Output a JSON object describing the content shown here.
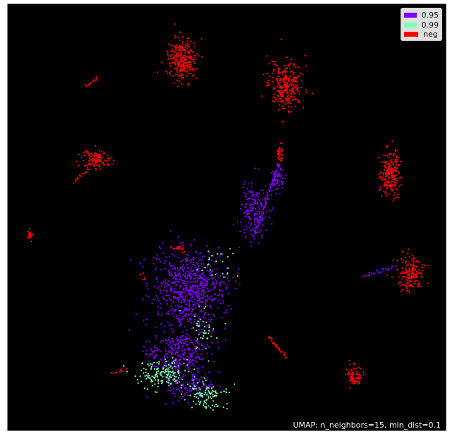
{
  "chart_data": {
    "type": "scatter",
    "title": "",
    "xlabel": "",
    "ylabel": "",
    "axes_visible": false,
    "background": "#000000",
    "annotation": "UMAP: n_neighbors=15, min_dist=0.1",
    "legend": {
      "placement": "top-right",
      "entries": [
        {
          "label": "0.95",
          "color": "#8000ff"
        },
        {
          "label": "0.99",
          "color": "#80ffb4"
        },
        {
          "label": "neg",
          "color": "#ff0000"
        }
      ]
    },
    "series": [
      {
        "name": "neg",
        "color": "#ff0000",
        "clusters": [
          {
            "center": [
              258,
              85
            ],
            "spread": [
              20,
              30
            ],
            "points": 300
          },
          {
            "center": [
              405,
              120
            ],
            "spread": [
              24,
              32
            ],
            "points": 300
          },
          {
            "center": [
              137,
              227
            ],
            "spread": [
              20,
              14
            ],
            "points": 130
          },
          {
            "center": [
              552,
              245
            ],
            "spread": [
              14,
              34
            ],
            "points": 220
          },
          {
            "center": [
              582,
              388
            ],
            "spread": [
              18,
              22
            ],
            "points": 180
          },
          {
            "center": [
              501,
              533
            ],
            "spread": [
              10,
              15
            ],
            "points": 80
          },
          {
            "center": [
              42,
              333
            ],
            "spread": [
              4,
              7
            ],
            "points": 22
          },
          {
            "center": [
              396,
              218
            ],
            "spread": [
              5,
              12
            ],
            "points": 40
          },
          {
            "center": [
              254,
              351
            ],
            "spread": [
              9,
              5
            ],
            "points": 25
          }
        ],
        "strands": [
          {
            "from": [
              122,
              122
            ],
            "to": [
              137,
              110
            ],
            "points": 14
          },
          {
            "from": [
              105,
              258
            ],
            "to": [
              125,
              240
            ],
            "points": 16
          },
          {
            "from": [
              380,
              477
            ],
            "to": [
              407,
              508
            ],
            "points": 30
          },
          {
            "from": [
              158,
              530
            ],
            "to": [
              178,
              523
            ],
            "points": 12
          },
          {
            "from": [
              200,
              387
            ],
            "to": [
              205,
              395
            ],
            "points": 6
          }
        ]
      },
      {
        "name": "0.95",
        "color": "#8000ff",
        "clusters": [
          {
            "center": [
              268,
              410
            ],
            "spread": [
              50,
              55
            ],
            "points": 720
          },
          {
            "center": [
              250,
              500
            ],
            "spread": [
              42,
              35
            ],
            "points": 320
          },
          {
            "center": [
              360,
              300
            ],
            "spread": [
              20,
              40
            ],
            "points": 180
          },
          {
            "center": [
              393,
              255
            ],
            "spread": [
              9,
              22
            ],
            "points": 60
          },
          {
            "center": [
              270,
              545
            ],
            "spread": [
              35,
              25
            ],
            "points": 120
          }
        ],
        "strands": [
          {
            "from": [
              515,
              392
            ],
            "to": [
              562,
              378
            ],
            "points": 25
          },
          {
            "from": [
              360,
              335
            ],
            "to": [
              395,
              232
            ],
            "points": 70
          }
        ]
      },
      {
        "name": "0.99",
        "color": "#80ffb4",
        "clusters": [
          {
            "center": [
              230,
              530
            ],
            "spread": [
              40,
              20
            ],
            "points": 160
          },
          {
            "center": [
              292,
              560
            ],
            "spread": [
              25,
              18
            ],
            "points": 110
          },
          {
            "center": [
              285,
              470
            ],
            "spread": [
              25,
              30
            ],
            "points": 40
          },
          {
            "center": [
              310,
              370
            ],
            "spread": [
              30,
              30
            ],
            "points": 25
          }
        ],
        "strands": []
      }
    ]
  }
}
